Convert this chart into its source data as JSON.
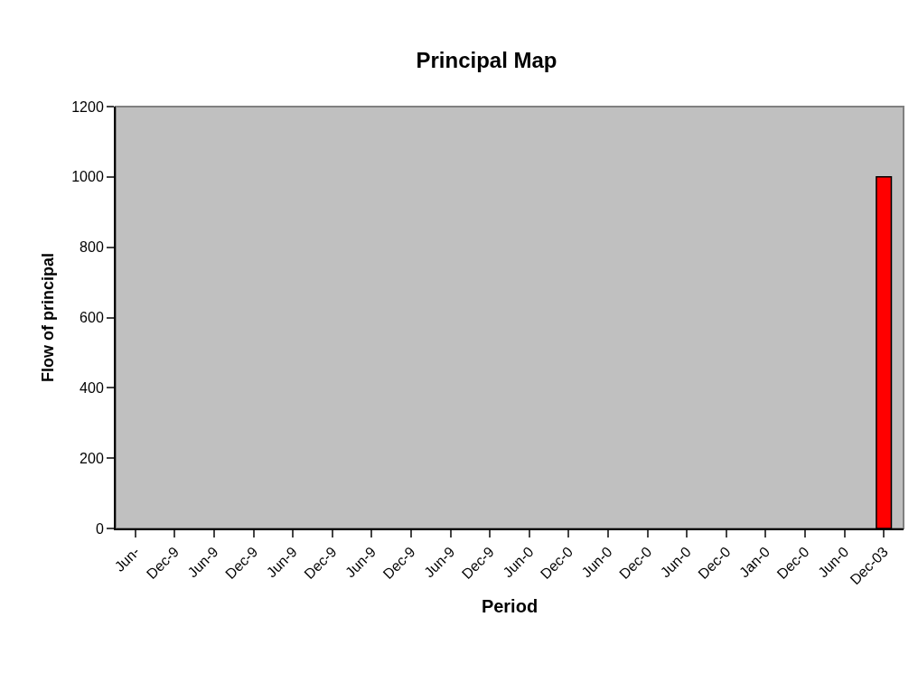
{
  "chart_data": {
    "type": "bar",
    "title": "Principal Map",
    "xlabel": "Period",
    "ylabel": "Flow of principal",
    "categories": [
      "Jun-",
      "Dec-9",
      "Jun-9",
      "Dec-9",
      "Jun-9",
      "Dec-9",
      "Jun-9",
      "Dec-9",
      "Jun-9",
      "Dec-9",
      "Jun-0",
      "Dec-0",
      "Jun-0",
      "Dec-0",
      "Jun-0",
      "Dec-0",
      "Jan-0",
      "Dec-0",
      "Jun-0",
      "Dec-03"
    ],
    "values": [
      0,
      0,
      0,
      0,
      0,
      0,
      0,
      0,
      0,
      0,
      0,
      0,
      0,
      0,
      0,
      0,
      0,
      0,
      0,
      1000
    ],
    "color": "#ff0000",
    "ylim": [
      0,
      1200
    ],
    "yticks": [
      0,
      200,
      400,
      600,
      800,
      1000,
      1200
    ],
    "grid": false,
    "legend": false
  }
}
